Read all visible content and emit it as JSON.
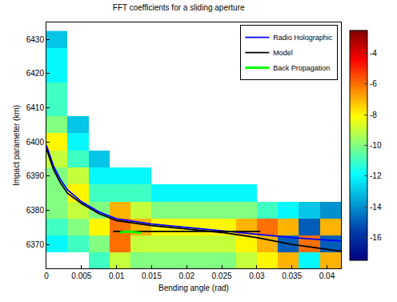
{
  "chart_data": {
    "type": "heatmap",
    "title": "FFT coefficients for a sliding aperture",
    "x_label": "Bending angle (rad)",
    "y_label": "Impact parameter (km)",
    "xlim": [
      0,
      0.042
    ],
    "xticks": [
      0,
      0.005,
      0.01,
      0.015,
      0.02,
      0.025,
      0.03,
      0.035,
      0.04
    ],
    "ylim": [
      6363,
      6435
    ],
    "yticks": [
      6370,
      6380,
      6390,
      6400,
      6410,
      6420,
      6430
    ],
    "grid": false,
    "legend": "upper right",
    "heatmap": {
      "color": "Jet",
      "x": [
        0.0015,
        0.0045,
        0.0075,
        0.0105,
        0.0135,
        0.0165,
        0.0195,
        0.0225,
        0.0255,
        0.0285,
        0.0315,
        0.0345,
        0.0375,
        0.0405
      ],
      "y": [
        6365,
        6370,
        6375,
        6380,
        6385,
        6390,
        6395,
        6400,
        6405,
        6410,
        6415,
        6420,
        6425,
        6430
      ],
      "cells": [
        [
          null,
          null,
          -11,
          -9,
          -10,
          -10,
          -10,
          -10,
          -10,
          -9,
          -8,
          -7,
          -12,
          -7
        ],
        [
          -12,
          -11,
          -10,
          -6,
          -9,
          -9,
          -9,
          -9,
          -9,
          -8,
          -7,
          -15,
          -6,
          -15
        ],
        [
          -11,
          -10,
          -8,
          -6,
          -7,
          -8,
          -8,
          -8,
          -8,
          -7,
          -6,
          -7,
          -15,
          -7
        ],
        [
          -10,
          -9,
          -10,
          -7,
          -9,
          -10,
          -10,
          -10,
          -10,
          -10,
          -11,
          -12,
          -13,
          -14
        ],
        [
          -10,
          -8,
          -11,
          -11,
          -11,
          -12,
          -12,
          -12,
          -12,
          -12,
          null,
          null,
          null,
          null
        ],
        [
          -10,
          -9,
          -12,
          -12,
          -12,
          null,
          null,
          null,
          null,
          null,
          null,
          null,
          null,
          null
        ],
        [
          -9,
          -11,
          -13,
          null,
          null,
          null,
          null,
          null,
          null,
          null,
          null,
          null,
          null,
          null
        ],
        [
          -8,
          -12,
          null,
          null,
          null,
          null,
          null,
          null,
          null,
          null,
          null,
          null,
          null,
          null
        ],
        [
          -10,
          -13,
          null,
          null,
          null,
          null,
          null,
          null,
          null,
          null,
          null,
          null,
          null,
          null
        ],
        [
          -11,
          null,
          null,
          null,
          null,
          null,
          null,
          null,
          null,
          null,
          null,
          null,
          null,
          null
        ],
        [
          -11,
          null,
          null,
          null,
          null,
          null,
          null,
          null,
          null,
          null,
          null,
          null,
          null,
          null
        ],
        [
          -12,
          null,
          null,
          null,
          null,
          null,
          null,
          null,
          null,
          null,
          null,
          null,
          null,
          null
        ],
        [
          -12,
          null,
          null,
          null,
          null,
          null,
          null,
          null,
          null,
          null,
          null,
          null,
          null,
          null
        ],
        [
          -13,
          null,
          null,
          null,
          null,
          null,
          null,
          null,
          null,
          null,
          null,
          null,
          null,
          null
        ]
      ],
      "colorbar": {
        "range": [
          -17.5,
          -2.5
        ],
        "ticks": [
          -16,
          -14,
          -12,
          -10,
          -8,
          -6,
          -4
        ]
      }
    },
    "series": [
      {
        "name": "Radio Holographic",
        "type": "line",
        "color": "#0000ff",
        "x": [
          0,
          0.001,
          0.002,
          0.003,
          0.005,
          0.0075,
          0.01,
          0.015,
          0.02,
          0.025,
          0.03,
          0.035,
          0.042
        ],
        "values": [
          6399,
          6393,
          6389,
          6386,
          6382.5,
          6379.5,
          6377.5,
          6376,
          6375,
          6374,
          6373,
          6372,
          6371
        ]
      },
      {
        "name": "Model",
        "type": "line",
        "color": "#000000",
        "x": [
          0,
          0.001,
          0.002,
          0.003,
          0.005,
          0.0075,
          0.01,
          0.015,
          0.02,
          0.025,
          0.03,
          0.035,
          0.042,
          null,
          0.0095,
          0.0305
        ],
        "values": [
          6398,
          6392,
          6388,
          6385,
          6382,
          6379,
          6377,
          6375.5,
          6374.5,
          6373.5,
          6372,
          6370,
          6368,
          null,
          6373.8,
          6373.8
        ]
      },
      {
        "name": "Back Propagation",
        "type": "line",
        "color": "#00ff00",
        "x": [
          0.0105,
          0.0115,
          0.0125,
          0.0135
        ],
        "values": [
          6373.5,
          6373.8,
          6373.6,
          6373.4
        ]
      }
    ]
  }
}
